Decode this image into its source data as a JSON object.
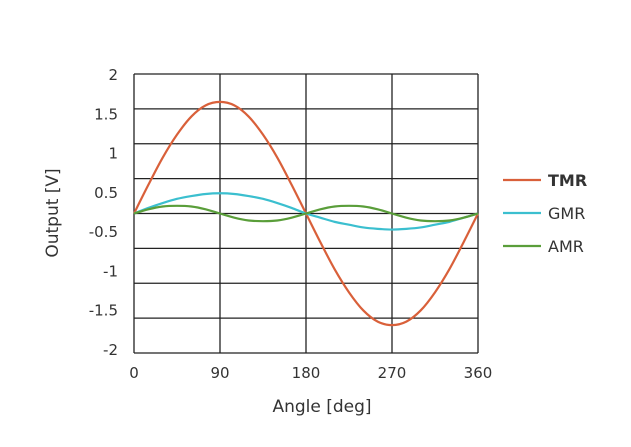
{
  "chart_data": {
    "type": "line",
    "title": "",
    "xlabel": "Angle [deg]",
    "ylabel": "Output [V]",
    "xlim": [
      0,
      360
    ],
    "ylim": [
      -2,
      2
    ],
    "grid": true,
    "legend_position": "right",
    "x_tick_labels": [
      "0",
      "90",
      "180",
      "270",
      "360"
    ],
    "x_ticks": [
      0,
      90,
      180,
      270,
      360
    ],
    "y_tick_labels": [
      "2",
      "1.5",
      "1",
      "0.5",
      "-0.5",
      "-1",
      "-1.5",
      "-2"
    ],
    "y_gridlines": [
      2,
      1.5,
      1,
      0.5,
      0,
      -0.5,
      -1,
      -1.5,
      -2
    ],
    "x": [
      0,
      15,
      30,
      45,
      60,
      75,
      90,
      105,
      120,
      135,
      150,
      165,
      180,
      195,
      210,
      225,
      240,
      255,
      270,
      285,
      300,
      315,
      330,
      345,
      360
    ],
    "series": [
      {
        "name": "TMR",
        "color": "#d9603a",
        "bold": true,
        "values": [
          0,
          0.41,
          0.8,
          1.13,
          1.39,
          1.55,
          1.6,
          1.55,
          1.39,
          1.13,
          0.8,
          0.41,
          0,
          -0.41,
          -0.8,
          -1.13,
          -1.39,
          -1.55,
          -1.6,
          -1.55,
          -1.39,
          -1.13,
          -0.8,
          -0.41,
          0
        ]
      },
      {
        "name": "GMR",
        "color": "#3bbfcf",
        "bold": false,
        "values": [
          0,
          0.08,
          0.15,
          0.21,
          0.25,
          0.28,
          0.29,
          0.28,
          0.25,
          0.21,
          0.15,
          0.08,
          0,
          -0.06,
          -0.12,
          -0.16,
          -0.2,
          -0.22,
          -0.23,
          -0.22,
          -0.2,
          -0.16,
          -0.12,
          -0.06,
          0
        ]
      },
      {
        "name": "AMR",
        "color": "#5a9e3a",
        "bold": false,
        "values": [
          0,
          0.06,
          0.1,
          0.11,
          0.1,
          0.06,
          0,
          -0.06,
          -0.1,
          -0.11,
          -0.1,
          -0.06,
          0,
          0.06,
          0.1,
          0.11,
          0.1,
          0.06,
          0,
          -0.06,
          -0.1,
          -0.11,
          -0.1,
          -0.06,
          0
        ]
      }
    ]
  }
}
